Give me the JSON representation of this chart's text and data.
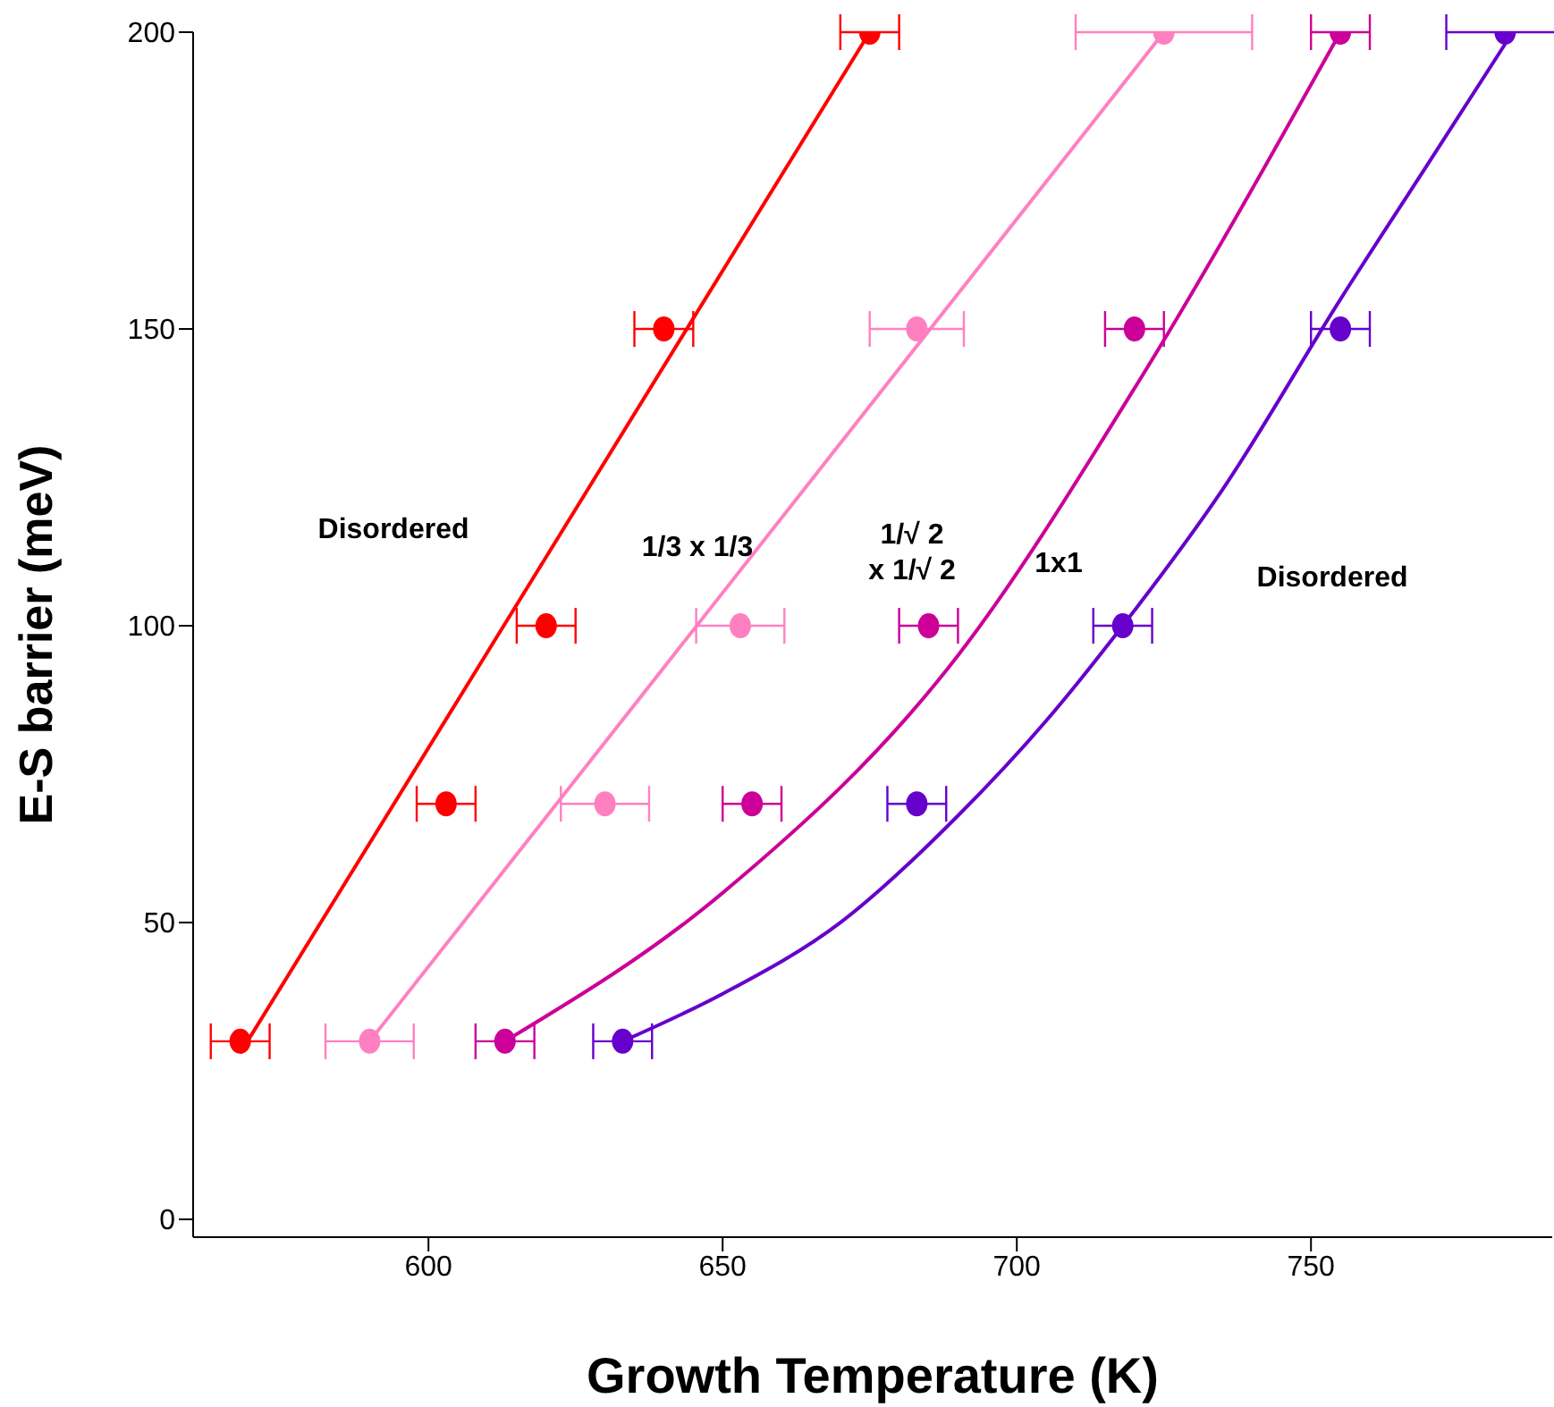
{
  "chart_data": {
    "type": "scatter",
    "xlabel": "Growth Temperature (K)",
    "ylabel": "E-S barrier (meV)",
    "xlim": [
      560,
      791
    ],
    "ylim": [
      -3,
      200
    ],
    "xticks": [
      600,
      650,
      700,
      750
    ],
    "yticks": [
      0,
      50,
      100,
      150,
      200
    ],
    "grid": false,
    "series": [
      {
        "marker": "circle",
        "color": "#ff0000",
        "x": [
          568,
          603,
          620,
          640,
          675
        ],
        "values": [
          30,
          70,
          100,
          150,
          200
        ],
        "xerrors": [
          5,
          5,
          5,
          5,
          5
        ]
      },
      {
        "marker": "circle",
        "color": "#ff80c0",
        "x": [
          590,
          630,
          653,
          683,
          725
        ],
        "values": [
          30,
          70,
          100,
          150,
          200
        ],
        "xerrors": [
          7.5,
          7.5,
          7.5,
          8,
          15
        ]
      },
      {
        "marker": "circle",
        "color": "#cc0099",
        "x": [
          613,
          655,
          685,
          720,
          755
        ],
        "values": [
          30,
          70,
          100,
          150,
          200
        ],
        "xerrors": [
          5,
          5,
          5,
          5,
          5
        ]
      },
      {
        "marker": "circle",
        "color": "#6600cc",
        "x": [
          633,
          683,
          718,
          755,
          783
        ],
        "values": [
          30,
          70,
          100,
          150,
          200
        ],
        "xerrors": [
          5,
          5,
          5,
          5,
          10
        ]
      },
      {
        "type": "line",
        "marker": "none",
        "color": "#ff0000",
        "x": [
          568,
          675
        ],
        "values": [
          28,
          200
        ]
      },
      {
        "type": "line",
        "marker": "none",
        "color": "#ff80c0",
        "x": [
          590,
          725
        ],
        "values": [
          30,
          200
        ]
      },
      {
        "type": "line",
        "marker": "none",
        "color": "#cc0099",
        "x": [
          613,
          650,
          690,
          720,
          755
        ],
        "values": [
          30,
          55,
          95,
          140,
          200
        ]
      },
      {
        "type": "line",
        "marker": "none",
        "color": "#6600cc",
        "x": [
          633,
          650,
          670,
          690,
          705,
          718,
          735,
          755,
          770,
          783
        ],
        "values": [
          30,
          38,
          50,
          68,
          84,
          100,
          123,
          155,
          178,
          198
        ]
      }
    ],
    "annotations": [
      "Disordered",
      "1/3 x 1/3",
      "1/√ 2\nx 1/√ 2",
      "1x1",
      "Disordered"
    ]
  }
}
